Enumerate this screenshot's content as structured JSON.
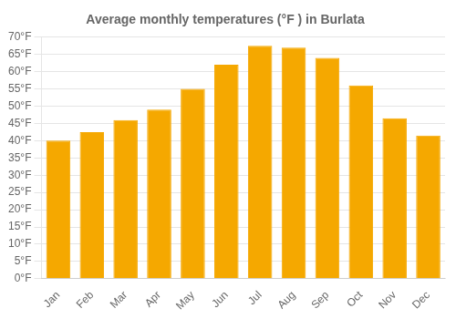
{
  "chart_data": {
    "type": "bar",
    "title": "Average monthly temperatures (°F ) in Burlata",
    "categories": [
      "Jan",
      "Feb",
      "Mar",
      "Apr",
      "May",
      "Jun",
      "Jul",
      "Aug",
      "Sep",
      "Oct",
      "Nov",
      "Dec"
    ],
    "values": [
      40,
      42.5,
      46,
      49,
      55,
      62,
      67.5,
      67,
      64,
      56,
      46.5,
      41.5
    ],
    "color": "#F5A800",
    "ylim": [
      0,
      70
    ],
    "yticks": [
      {
        "value": 0,
        "label": "0°F"
      },
      {
        "value": 5,
        "label": "5°F"
      },
      {
        "value": 10,
        "label": "10°F"
      },
      {
        "value": 15,
        "label": "15°F"
      },
      {
        "value": 20,
        "label": "20°F"
      },
      {
        "value": 25,
        "label": "25°F"
      },
      {
        "value": 30,
        "label": "30°F"
      },
      {
        "value": 35,
        "label": "35°F"
      },
      {
        "value": 40,
        "label": "40°F"
      },
      {
        "value": 45,
        "label": "45°F"
      },
      {
        "value": 50,
        "label": "50°F"
      },
      {
        "value": 55,
        "label": "55°F"
      },
      {
        "value": 60,
        "label": "60°F"
      },
      {
        "value": 65,
        "label": "65°F"
      },
      {
        "value": 70,
        "label": "70°F"
      }
    ],
    "grid": true
  }
}
